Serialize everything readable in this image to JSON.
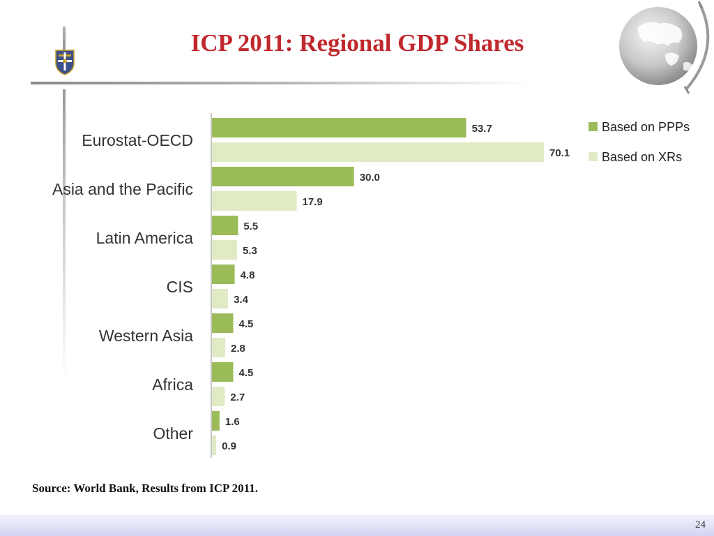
{
  "slide": {
    "title": "ICP 2011: Regional GDP Shares",
    "source": "Source: World Bank, Results from ICP 2011.",
    "page_number": "24",
    "colors": {
      "title": "#c0282d",
      "ppp_bar": "#9bbb59",
      "xr_bar": "#e0ebc6"
    },
    "icons": {
      "crest": "university-crest-icon",
      "globe": "globe-icon"
    }
  },
  "chart_data": {
    "type": "bar",
    "orientation": "horizontal",
    "title": "ICP 2011: Regional GDP Shares",
    "categories": [
      "Eurostat-OECD",
      "Asia and the Pacific",
      "Latin America",
      "CIS",
      "Western Asia",
      "Africa",
      "Other"
    ],
    "series": [
      {
        "name": "Based on PPPs",
        "values": [
          53.7,
          30.0,
          5.5,
          4.8,
          4.5,
          4.5,
          1.6
        ],
        "labels": [
          "53.7",
          "30.0",
          "5.5",
          "4.8",
          "4.5",
          "4.5",
          "1.6"
        ]
      },
      {
        "name": "Based on XRs",
        "values": [
          70.1,
          17.9,
          5.3,
          3.4,
          2.8,
          2.7,
          0.9
        ],
        "labels": [
          "70.1",
          "17.9",
          "5.3",
          "3.4",
          "2.8",
          "2.7",
          "0.9"
        ]
      }
    ],
    "xlim": [
      0,
      80
    ],
    "grid": false,
    "legend": "top-right",
    "xlabel": "",
    "ylabel": ""
  }
}
